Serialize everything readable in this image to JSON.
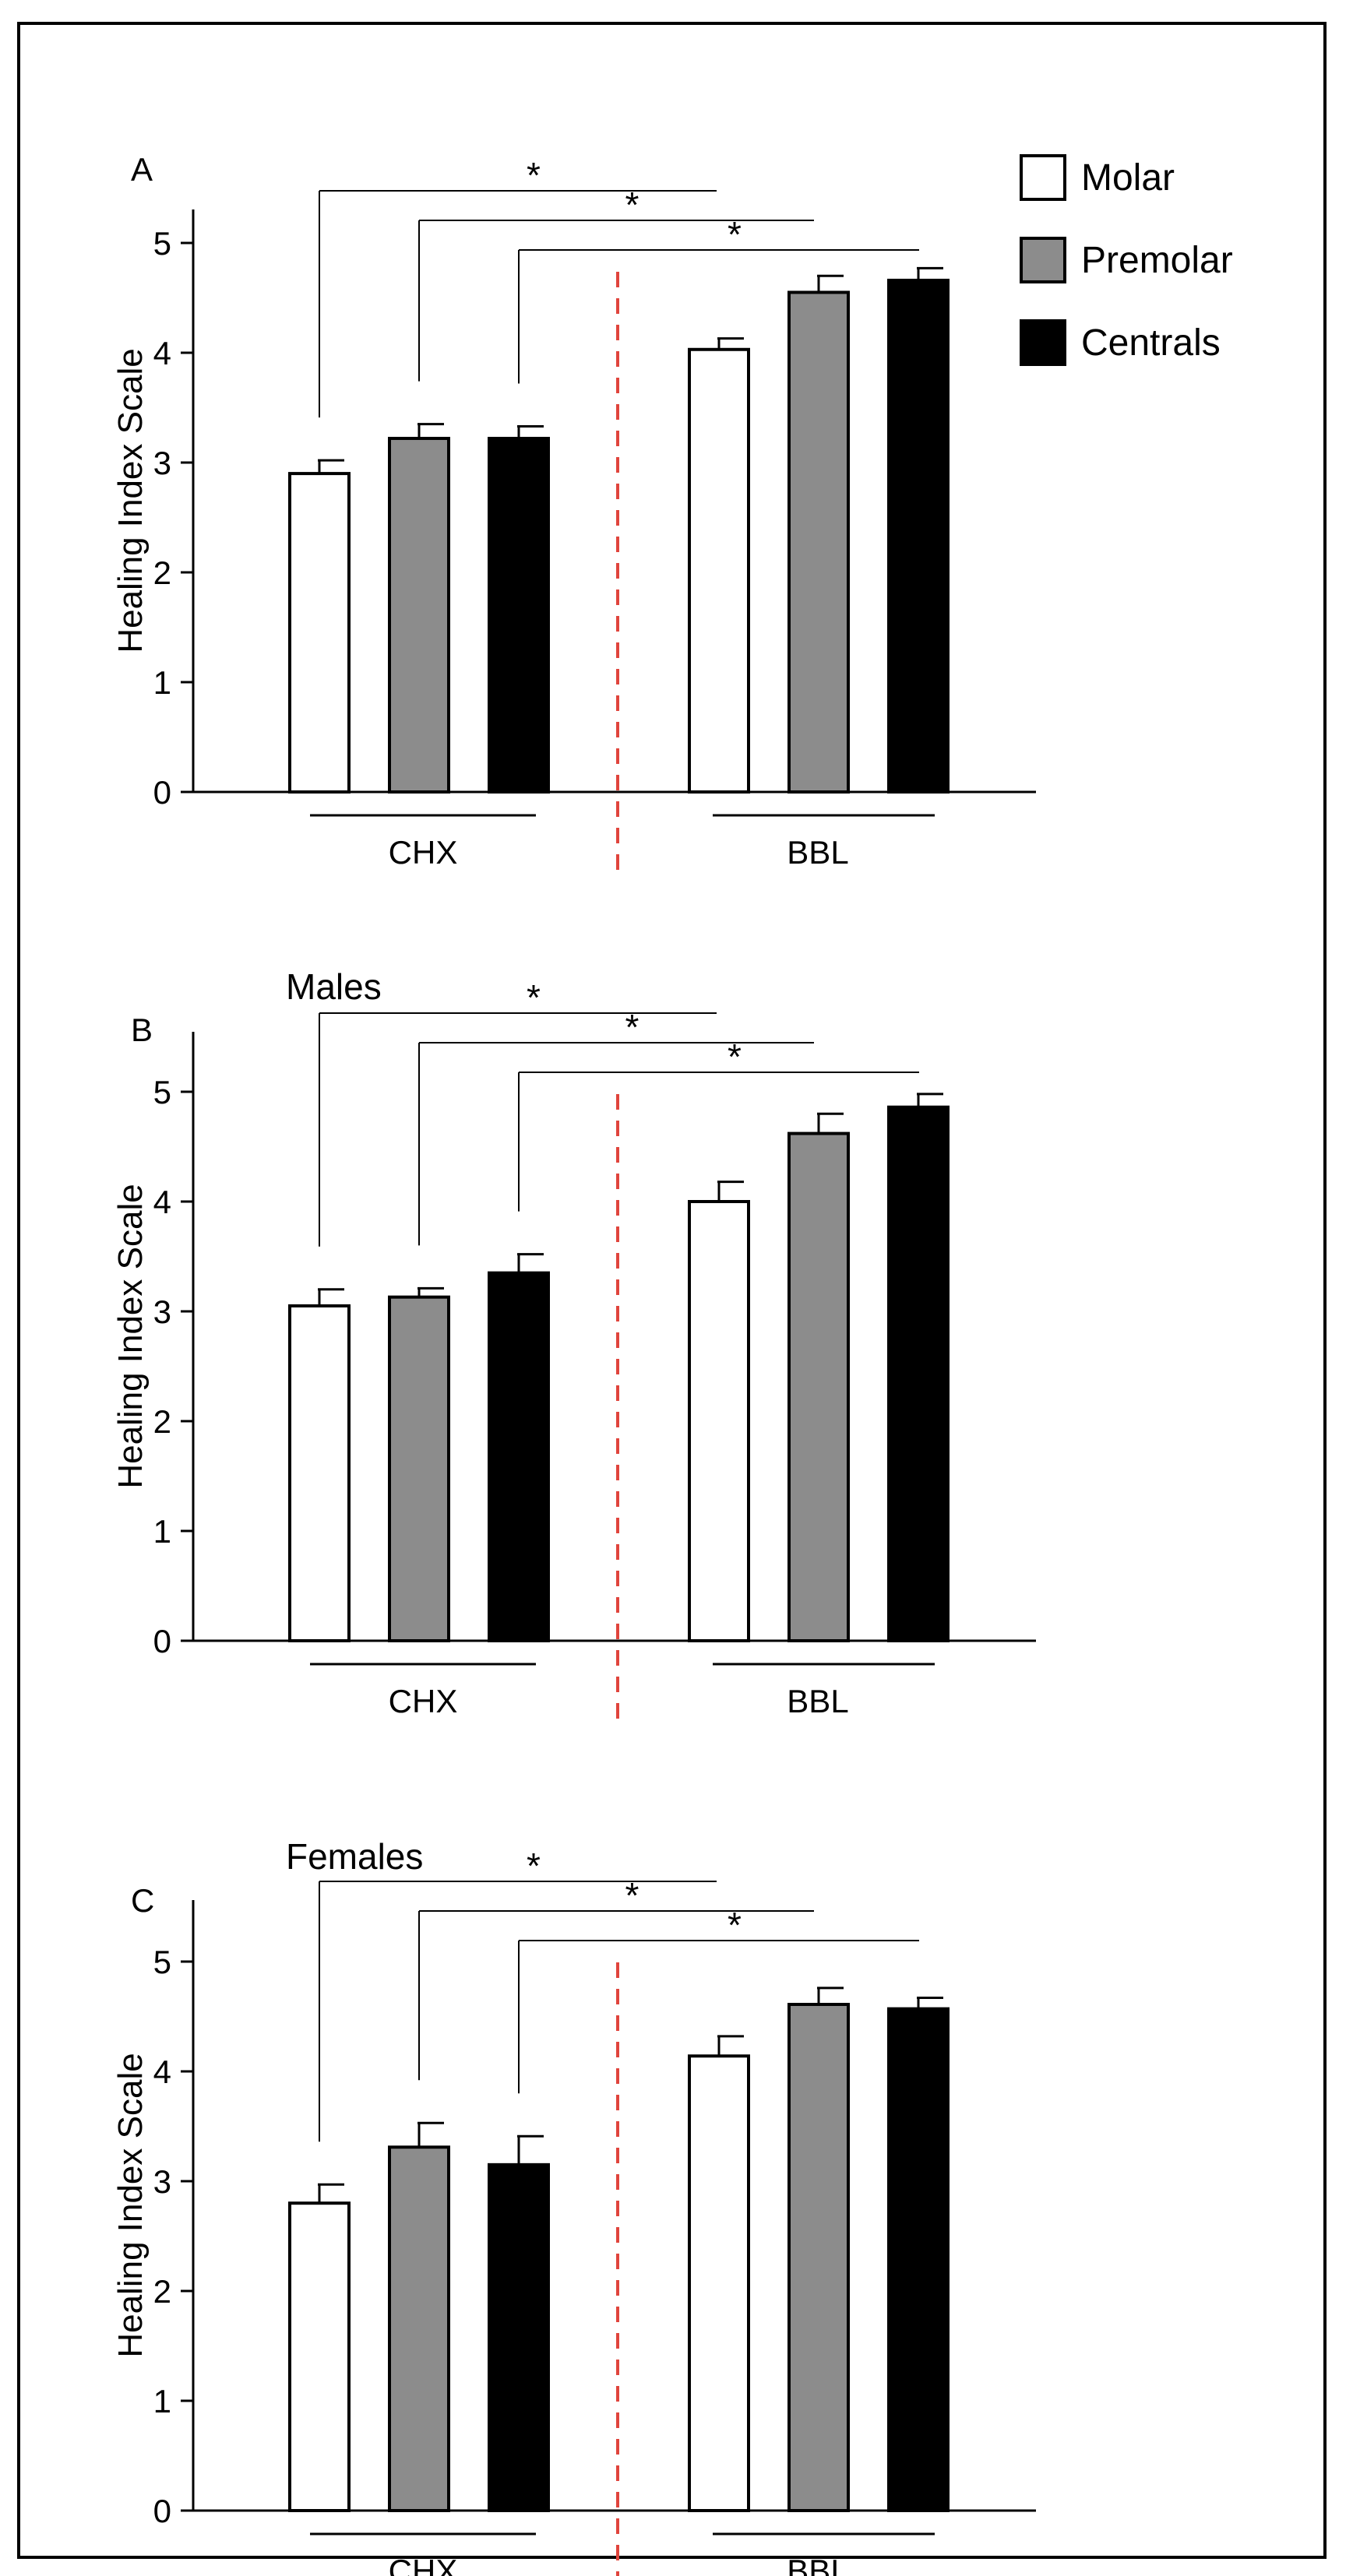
{
  "figure": {
    "legend": [
      {
        "label": "Molar",
        "fill": "#ffffff"
      },
      {
        "label": "Premolar",
        "fill": "#8c8c8c"
      },
      {
        "label": "Centrals",
        "fill": "#000000"
      }
    ],
    "divider_color": "#e0443c"
  },
  "chart_data": [
    {
      "type": "bar",
      "panel_label": "A",
      "subtitle": "",
      "ylabel": "Healing Index Scale",
      "ylim": [
        0,
        5
      ],
      "yticks": [
        "0",
        "1",
        "2",
        "3",
        "4",
        "5"
      ],
      "groups": [
        "CHX",
        "BBL"
      ],
      "series": [
        {
          "name": "Molar",
          "values": [
            2.9,
            4.03
          ],
          "errors": [
            0.12,
            0.1
          ]
        },
        {
          "name": "Premolar",
          "values": [
            3.22,
            4.55
          ],
          "errors": [
            0.13,
            0.15
          ]
        },
        {
          "name": "Centrals",
          "values": [
            3.22,
            4.66
          ],
          "errors": [
            0.11,
            0.11
          ]
        }
      ],
      "significance": [
        "*",
        "*",
        "*"
      ]
    },
    {
      "type": "bar",
      "panel_label": "B",
      "subtitle": "Males",
      "ylabel": "Healing Index Scale",
      "ylim": [
        0,
        5
      ],
      "yticks": [
        "0",
        "1",
        "2",
        "3",
        "4",
        "5"
      ],
      "groups": [
        "CHX",
        "BBL"
      ],
      "series": [
        {
          "name": "Molar",
          "values": [
            3.05,
            4.0
          ],
          "errors": [
            0.15,
            0.18
          ]
        },
        {
          "name": "Premolar",
          "values": [
            3.13,
            4.62
          ],
          "errors": [
            0.08,
            0.18
          ]
        },
        {
          "name": "Centrals",
          "values": [
            3.35,
            4.86
          ],
          "errors": [
            0.17,
            0.12
          ]
        }
      ],
      "significance": [
        "*",
        "*",
        "*"
      ]
    },
    {
      "type": "bar",
      "panel_label": "C",
      "subtitle": "Females",
      "ylabel": "Healing Index Scale",
      "ylim": [
        0,
        5
      ],
      "yticks": [
        "0",
        "1",
        "2",
        "3",
        "4",
        "5"
      ],
      "groups": [
        "CHX",
        "BBL"
      ],
      "series": [
        {
          "name": "Molar",
          "values": [
            2.8,
            4.14
          ],
          "errors": [
            0.17,
            0.18
          ]
        },
        {
          "name": "Premolar",
          "values": [
            3.31,
            4.61
          ],
          "errors": [
            0.22,
            0.15
          ]
        },
        {
          "name": "Centrals",
          "values": [
            3.15,
            4.57
          ],
          "errors": [
            0.26,
            0.1
          ]
        }
      ],
      "significance": [
        "*",
        "*",
        "*"
      ]
    }
  ]
}
